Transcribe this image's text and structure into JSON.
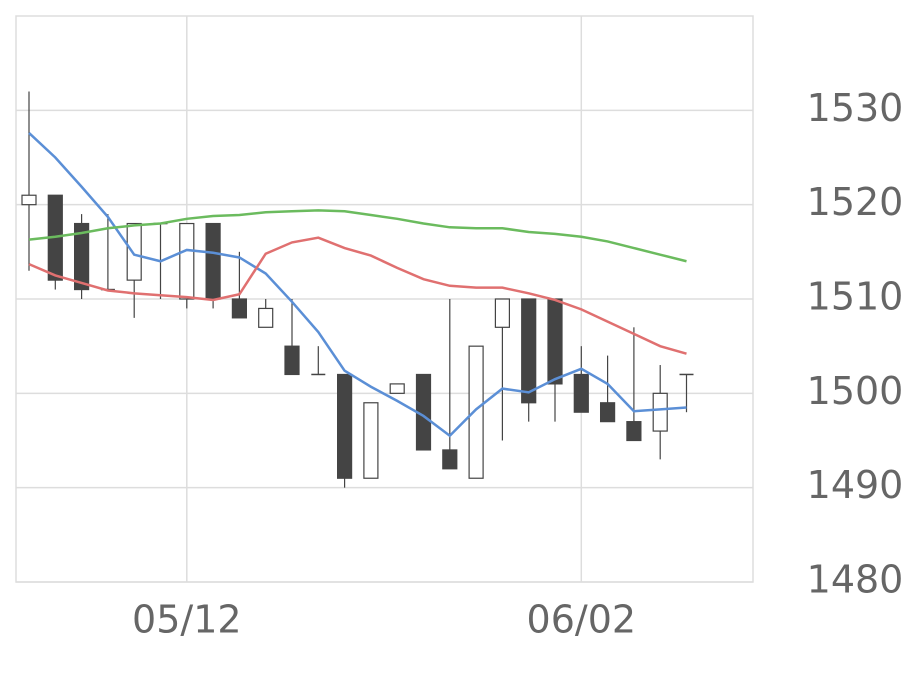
{
  "chart_data": {
    "type": "candlestick",
    "categories": [
      null,
      null,
      null,
      null,
      null,
      null,
      "05/12",
      null,
      null,
      null,
      null,
      null,
      null,
      null,
      null,
      null,
      null,
      null,
      null,
      null,
      null,
      "06/02",
      null,
      null,
      null,
      null
    ],
    "open": [
      1520,
      1521,
      1518,
      1511,
      1512,
      1518,
      1510,
      1518,
      1510,
      1507,
      1505,
      1502,
      1502,
      1491,
      1500,
      1502,
      1494,
      1491,
      1507,
      1510,
      1510,
      1502,
      1499,
      1497,
      1496,
      1502
    ],
    "high": [
      1532,
      1521,
      1519,
      1519,
      1518,
      1518,
      1518,
      1518,
      1515,
      1510,
      1510,
      1505,
      1502,
      1499,
      1501,
      1502,
      1510,
      1505,
      1510,
      1510,
      1510,
      1505,
      1504,
      1507,
      1503,
      1502
    ],
    "low": [
      1513,
      1511,
      1510,
      1511,
      1508,
      1510,
      1509,
      1509,
      1508,
      1507,
      1502,
      1502,
      1490,
      1491,
      1500,
      1494,
      1492,
      1491,
      1495,
      1497,
      1497,
      1498,
      1497,
      1495,
      1493,
      1498
    ],
    "close": [
      1521,
      1512,
      1511,
      1511,
      1518,
      1518,
      1518,
      1510,
      1508,
      1509,
      1502,
      1502,
      1491,
      1499,
      1501,
      1494,
      1492,
      1505,
      1510,
      1499,
      1501,
      1498,
      1497,
      1495,
      1500,
      1502
    ],
    "up_color": "#ffffff",
    "down_color": "#444444",
    "series": [
      {
        "color": "#5b8fd6",
        "values": [
          1527.6,
          1525,
          1521.9,
          1518.7,
          1514.7,
          1514,
          1515.2,
          1514.9,
          1514.4,
          1512.7,
          1509.7,
          1506.5,
          1502.4,
          1500.7,
          1499.2,
          1497.6,
          1495.5,
          1498.3,
          1500.5,
          1500.1,
          1501.5,
          1502.6,
          1501,
          1498.1,
          1498.3,
          1498.5
        ]
      },
      {
        "color": "#e07070",
        "values": [
          1513.7,
          1512.5,
          1511.7,
          1510.9,
          1510.6,
          1510.4,
          1510.2,
          1509.9,
          1510.5,
          1514.8,
          1516,
          1516.5,
          1515.4,
          1514.6,
          1513.3,
          1512.1,
          1511.4,
          1511.2,
          1511.2,
          1510.6,
          1509.9,
          1508.9,
          1507.6,
          1506.3,
          1505,
          1504.2
        ]
      },
      {
        "color": "#6bbb5e",
        "values": [
          1516.3,
          1516.6,
          1517,
          1517.5,
          1517.8,
          1518,
          1518.5,
          1518.8,
          1518.9,
          1519.2,
          1519.3,
          1519.4,
          1519.3,
          1518.9,
          1518.5,
          1518,
          1517.6,
          1517.5,
          1517.5,
          1517.1,
          1516.9,
          1516.6,
          1516.1,
          1515.4,
          1514.7,
          1514
        ]
      }
    ],
    "ylim": [
      1480,
      1540
    ],
    "yticks": [
      1480,
      1490,
      1500,
      1510,
      1520,
      1530
    ],
    "grid": true
  }
}
